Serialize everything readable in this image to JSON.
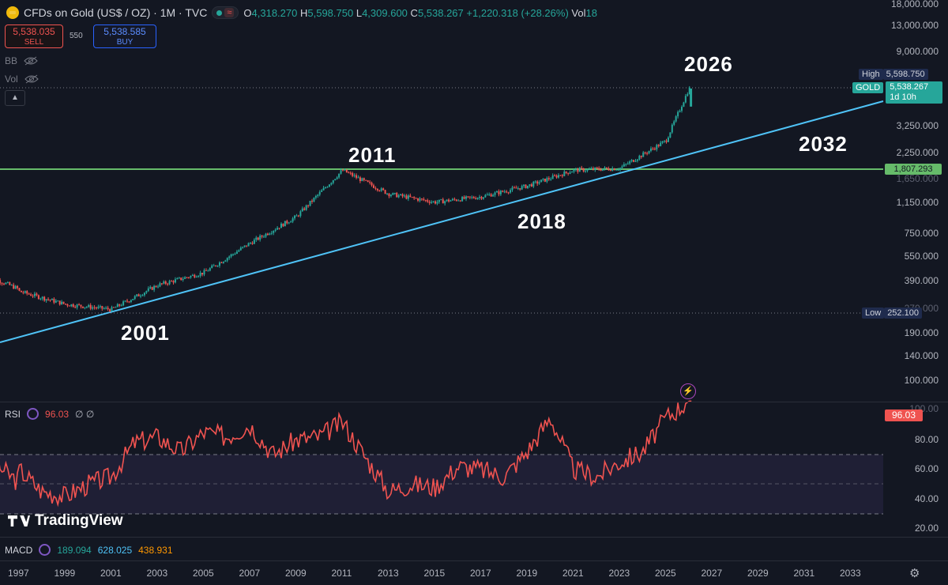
{
  "header": {
    "title": "CFDs on Gold (US$ / OZ) · 1M · TVC",
    "status_icon": "≈",
    "ohlc": {
      "o_key": "O",
      "o_val": "4,318.270",
      "h_key": "H",
      "h_val": "5,598.750",
      "l_key": "L",
      "l_val": "4,309.600",
      "c_key": "C",
      "c_val": "5,538.267",
      "change": "+1,220.318 (+28.26%)",
      "vol_key": "Vol",
      "vol_val": "18"
    }
  },
  "trade": {
    "sell_price": "5,538.035",
    "sell_label": "SELL",
    "spread": "550",
    "buy_price": "5,538.585",
    "buy_label": "BUY"
  },
  "indicators": {
    "bb": "BB",
    "vol": "Vol",
    "rsi_label": "RSI",
    "rsi_value": "96.03",
    "rsi_extra": "∅ ∅",
    "macd_label": "MACD",
    "macd_v1": "189.094",
    "macd_v2": "628.025",
    "macd_v3": "438.931"
  },
  "price_axis": {
    "ticks": [
      "18,000.000",
      "13,000.000",
      "9,000.000",
      "3,250.000",
      "2,250.000",
      "1,650.000",
      "1,150.000",
      "750.000",
      "550.000",
      "390.000",
      "270.000",
      "190.000",
      "140.000",
      "100.000"
    ],
    "high_label": "High",
    "high_value": "5,598.750",
    "gold_label": "GOLD",
    "gold_value": "5,538.267",
    "countdown": "1d 10h",
    "line_value": "1,807.293",
    "low_label": "Low",
    "low_value": "252.100"
  },
  "rsi_axis": {
    "ticks": [
      "100.00",
      "80.00",
      "60.00",
      "40.00",
      "20.00"
    ],
    "current": "96.03"
  },
  "annotations": [
    "2026",
    "2011",
    "2032",
    "2018",
    "2001"
  ],
  "time_axis": [
    "1997",
    "1999",
    "2001",
    "2003",
    "2005",
    "2007",
    "2009",
    "2011",
    "2013",
    "2015",
    "2017",
    "2019",
    "2021",
    "2023",
    "2025",
    "2027",
    "2029",
    "2031",
    "2033"
  ],
  "brand": "TradingView",
  "colors": {
    "background": "#131722",
    "up": "#26a69a",
    "down": "#ef5350",
    "trendline": "#4fc3f7",
    "horizontal_line": "#66bb6a",
    "rsi_line": "#f05350"
  },
  "chart_data": [
    {
      "type": "candlestick",
      "title": "CFDs on Gold (US$ / OZ) · 1M · TVC",
      "y_scale": "log",
      "x": [
        "1997",
        "1999",
        "2001",
        "2003",
        "2005",
        "2007",
        "2009",
        "2011",
        "2013",
        "2015",
        "2017",
        "2019",
        "2021",
        "2023",
        "2025",
        "2026"
      ],
      "values": [
        340,
        285,
        265,
        370,
        440,
        660,
        950,
        1800,
        1300,
        1160,
        1250,
        1450,
        1800,
        1850,
        2700,
        5538
      ],
      "series": [
        {
          "name": "trendline",
          "x": [
            1996.0,
            2026.7
          ],
          "y": [
            170,
            4000
          ]
        },
        {
          "name": "1,807.293",
          "y": 1807.293
        }
      ]
    },
    {
      "type": "line",
      "title": "RSI",
      "ylim": [
        20,
        100
      ],
      "x": [
        "1997",
        "1998",
        "1999",
        "2000",
        "2001",
        "2002",
        "2003",
        "2004",
        "2005",
        "2006",
        "2007",
        "2008",
        "2009",
        "2010",
        "2011",
        "2012",
        "2013",
        "2014",
        "2015",
        "2016",
        "2017",
        "2018",
        "2019",
        "2020",
        "2021",
        "2022",
        "2023",
        "2024",
        "2025",
        "2026"
      ],
      "values": [
        50,
        35,
        32,
        40,
        45,
        68,
        72,
        62,
        75,
        72,
        80,
        60,
        70,
        72,
        82,
        58,
        35,
        40,
        38,
        52,
        50,
        45,
        62,
        85,
        50,
        45,
        55,
        62,
        85,
        96.03
      ]
    }
  ]
}
